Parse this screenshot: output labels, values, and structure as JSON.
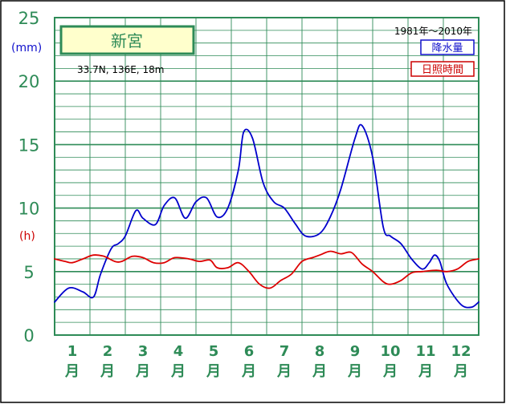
{
  "chart_data": {
    "type": "line",
    "title": "新宮",
    "location": "33.7N, 136E, 18m",
    "period": "1981年〜2010年",
    "x_unit_char": "月",
    "y_units": [
      "(mm)",
      "(h)"
    ],
    "yticks": [
      "0",
      "5",
      "10",
      "15",
      "20",
      "25"
    ],
    "ylim": [
      0,
      25
    ],
    "xlim": [
      0.5,
      12.5
    ],
    "categories": [
      "1",
      "2",
      "3",
      "4",
      "5",
      "6",
      "7",
      "8",
      "9",
      "10",
      "11",
      "12"
    ],
    "grid": true,
    "legend_position": "top-right",
    "series": [
      {
        "name": "降水量",
        "color": "#0000cc",
        "x": [
          0.5,
          0.9,
          1.3,
          1.6,
          1.8,
          2.1,
          2.3,
          2.5,
          2.8,
          3.0,
          3.35,
          3.6,
          3.9,
          4.2,
          4.5,
          4.8,
          5.1,
          5.4,
          5.7,
          5.85,
          6.1,
          6.4,
          6.7,
          7.0,
          7.3,
          7.6,
          8.0,
          8.3,
          8.6,
          9.0,
          9.2,
          9.5,
          9.8,
          10.0,
          10.3,
          10.6,
          10.9,
          11.1,
          11.25,
          11.4,
          11.6,
          12.0,
          12.3,
          12.5
        ],
        "y": [
          2.6,
          3.7,
          3.4,
          3.0,
          4.8,
          6.8,
          7.2,
          7.8,
          9.8,
          9.2,
          8.7,
          10.2,
          10.8,
          9.2,
          10.5,
          10.8,
          9.3,
          10.0,
          13.0,
          16.0,
          15.5,
          12.0,
          10.5,
          10.0,
          8.8,
          7.8,
          8.0,
          9.3,
          11.5,
          15.5,
          16.5,
          14.0,
          8.5,
          7.8,
          7.2,
          6.0,
          5.2,
          5.7,
          6.3,
          5.8,
          4.0,
          2.4,
          2.2,
          2.6
        ]
      },
      {
        "name": "日照時間",
        "color": "#dd0000",
        "x": [
          0.5,
          0.8,
          1.0,
          1.3,
          1.6,
          1.9,
          2.2,
          2.4,
          2.7,
          3.0,
          3.3,
          3.6,
          3.9,
          4.3,
          4.6,
          4.9,
          5.1,
          5.4,
          5.7,
          6.0,
          6.3,
          6.6,
          6.9,
          7.2,
          7.5,
          7.8,
          8.0,
          8.3,
          8.6,
          8.9,
          9.2,
          9.5,
          9.8,
          10.0,
          10.3,
          10.6,
          10.9,
          11.3,
          11.6,
          11.9,
          12.2,
          12.5
        ],
        "y": [
          6.0,
          5.8,
          5.7,
          6.0,
          6.3,
          6.2,
          5.8,
          5.8,
          6.2,
          6.1,
          5.7,
          5.7,
          6.1,
          6.0,
          5.8,
          5.9,
          5.3,
          5.3,
          5.7,
          5.0,
          4.0,
          3.7,
          4.3,
          4.8,
          5.8,
          6.1,
          6.3,
          6.6,
          6.4,
          6.5,
          5.6,
          5.0,
          4.2,
          4.0,
          4.3,
          4.9,
          5.0,
          5.1,
          5.0,
          5.2,
          5.8,
          6.0
        ]
      }
    ]
  }
}
